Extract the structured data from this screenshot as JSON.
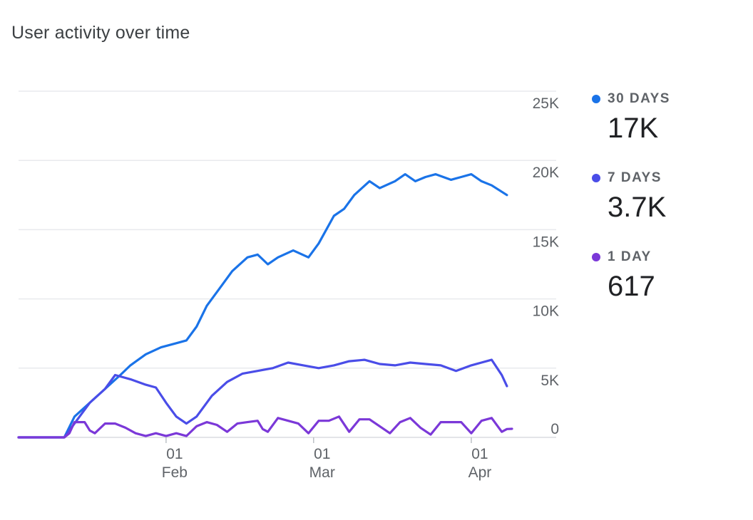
{
  "chart_data": {
    "type": "line",
    "title": "User activity over time",
    "xlabel": "",
    "ylabel": "",
    "ylim": [
      0,
      25000
    ],
    "y_ticks": [
      {
        "value": 0,
        "label": "0"
      },
      {
        "value": 5000,
        "label": "5K"
      },
      {
        "value": 10000,
        "label": "10K"
      },
      {
        "value": 15000,
        "label": "15K"
      },
      {
        "value": 20000,
        "label": "20K"
      },
      {
        "value": 25000,
        "label": "25K"
      }
    ],
    "x_ticks": [
      {
        "x": 29,
        "day": "01",
        "month": "Feb"
      },
      {
        "x": 58,
        "day": "01",
        "month": "Mar"
      },
      {
        "x": 89,
        "day": "01",
        "month": "Apr"
      }
    ],
    "xlim": [
      0,
      97
    ],
    "legend_position": "right",
    "series": [
      {
        "name": "30 DAYS",
        "legend_value": "17K",
        "color": "#1a73e8",
        "points": [
          [
            0,
            0
          ],
          [
            9,
            0
          ],
          [
            11,
            1500
          ],
          [
            14,
            2500
          ],
          [
            17,
            3500
          ],
          [
            20,
            4500
          ],
          [
            22,
            5200
          ],
          [
            25,
            6000
          ],
          [
            28,
            6500
          ],
          [
            31,
            6800
          ],
          [
            33,
            7000
          ],
          [
            35,
            8000
          ],
          [
            37,
            9500
          ],
          [
            40,
            11000
          ],
          [
            42,
            12000
          ],
          [
            45,
            13000
          ],
          [
            47,
            13200
          ],
          [
            49,
            12500
          ],
          [
            51,
            13000
          ],
          [
            54,
            13500
          ],
          [
            57,
            13000
          ],
          [
            59,
            14000
          ],
          [
            62,
            16000
          ],
          [
            64,
            16500
          ],
          [
            66,
            17500
          ],
          [
            69,
            18500
          ],
          [
            71,
            18000
          ],
          [
            74,
            18500
          ],
          [
            76,
            19000
          ],
          [
            78,
            18500
          ],
          [
            80,
            18800
          ],
          [
            82,
            19000
          ],
          [
            85,
            18600
          ],
          [
            87,
            18800
          ],
          [
            89,
            19000
          ],
          [
            91,
            18500
          ],
          [
            93,
            18200
          ],
          [
            96,
            17500
          ]
        ]
      },
      {
        "name": "7 DAYS",
        "legend_value": "3.7K",
        "color": "#4a4de8",
        "points": [
          [
            0,
            0
          ],
          [
            9,
            0
          ],
          [
            12,
            1500
          ],
          [
            14,
            2500
          ],
          [
            17,
            3500
          ],
          [
            19,
            4500
          ],
          [
            22,
            4200
          ],
          [
            25,
            3800
          ],
          [
            27,
            3600
          ],
          [
            29,
            2500
          ],
          [
            31,
            1500
          ],
          [
            33,
            1000
          ],
          [
            35,
            1500
          ],
          [
            38,
            3000
          ],
          [
            41,
            4000
          ],
          [
            44,
            4600
          ],
          [
            47,
            4800
          ],
          [
            50,
            5000
          ],
          [
            53,
            5400
          ],
          [
            56,
            5200
          ],
          [
            59,
            5000
          ],
          [
            62,
            5200
          ],
          [
            65,
            5500
          ],
          [
            68,
            5600
          ],
          [
            71,
            5300
          ],
          [
            74,
            5200
          ],
          [
            77,
            5400
          ],
          [
            80,
            5300
          ],
          [
            83,
            5200
          ],
          [
            86,
            4800
          ],
          [
            89,
            5200
          ],
          [
            91,
            5400
          ],
          [
            93,
            5600
          ],
          [
            95,
            4500
          ],
          [
            96,
            3700
          ]
        ]
      },
      {
        "name": "1 DAY",
        "legend_value": "617",
        "color": "#7b38d8",
        "points": [
          [
            0,
            0
          ],
          [
            9,
            0
          ],
          [
            10,
            300
          ],
          [
            11,
            1100
          ],
          [
            13,
            1100
          ],
          [
            14,
            500
          ],
          [
            15,
            300
          ],
          [
            17,
            1000
          ],
          [
            19,
            1000
          ],
          [
            21,
            700
          ],
          [
            23,
            300
          ],
          [
            25,
            100
          ],
          [
            27,
            300
          ],
          [
            29,
            100
          ],
          [
            31,
            300
          ],
          [
            33,
            100
          ],
          [
            35,
            800
          ],
          [
            37,
            1100
          ],
          [
            39,
            900
          ],
          [
            41,
            400
          ],
          [
            43,
            1000
          ],
          [
            45,
            1100
          ],
          [
            47,
            1200
          ],
          [
            48,
            600
          ],
          [
            49,
            400
          ],
          [
            51,
            1400
          ],
          [
            53,
            1200
          ],
          [
            55,
            1000
          ],
          [
            57,
            300
          ],
          [
            59,
            1200
          ],
          [
            61,
            1200
          ],
          [
            63,
            1500
          ],
          [
            65,
            400
          ],
          [
            67,
            1300
          ],
          [
            69,
            1300
          ],
          [
            71,
            800
          ],
          [
            73,
            300
          ],
          [
            75,
            1100
          ],
          [
            77,
            1400
          ],
          [
            79,
            700
          ],
          [
            81,
            200
          ],
          [
            83,
            1100
          ],
          [
            85,
            1100
          ],
          [
            87,
            1100
          ],
          [
            89,
            300
          ],
          [
            91,
            1200
          ],
          [
            93,
            1400
          ],
          [
            95,
            400
          ],
          [
            96,
            600
          ],
          [
            97,
            617
          ]
        ]
      }
    ]
  }
}
